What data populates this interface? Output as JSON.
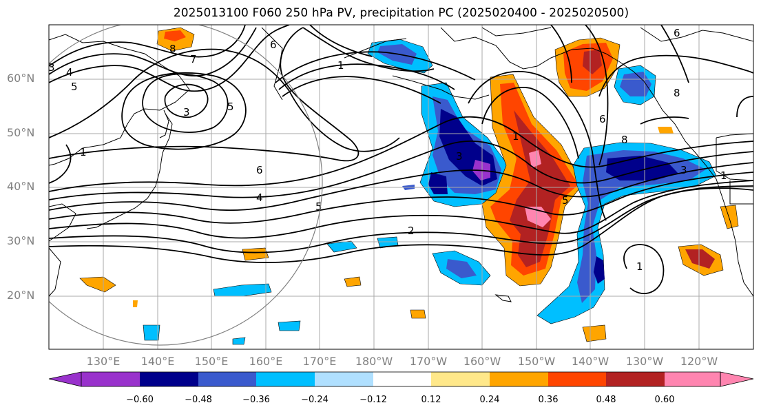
{
  "title": "2025013100 F060 250 hPa PV, precipitation PC (2025020400 - 2025020500)",
  "lat_labels": [
    "60°N",
    "50°N",
    "40°N",
    "30°N",
    "20°N"
  ],
  "lon_labels": [
    "130°E",
    "140°E",
    "150°E",
    "160°E",
    "170°E",
    "180°W",
    "170°W",
    "160°W",
    "150°W",
    "140°W",
    "130°W",
    "120°W"
  ],
  "pv_contour_labels": [
    "1",
    "2",
    "3",
    "4",
    "5",
    "6",
    "7",
    "8"
  ],
  "colorbar": {
    "tick_labels": [
      "−0.60",
      "−0.48",
      "−0.36",
      "−0.24",
      "−0.12",
      "0.12",
      "0.24",
      "0.36",
      "0.48",
      "0.60"
    ],
    "colors": [
      "#9932cc",
      "#00008b",
      "#3a5acd",
      "#00bfff",
      "#b0e0ff",
      "#ffffff",
      "#ffe88a",
      "#ffa500",
      "#ff4500",
      "#b22222",
      "#ff85b0"
    ]
  },
  "colors": {
    "purple": "#9932cc",
    "navy": "#00008b",
    "blue": "#3a5acd",
    "deepskyblue": "#00bfff",
    "lightblue": "#b0e0ff",
    "lightyellow": "#ffe88a",
    "orange": "#ffa500",
    "orangered": "#ff4500",
    "firebrick": "#b22222",
    "pink": "#ff85b0"
  }
}
